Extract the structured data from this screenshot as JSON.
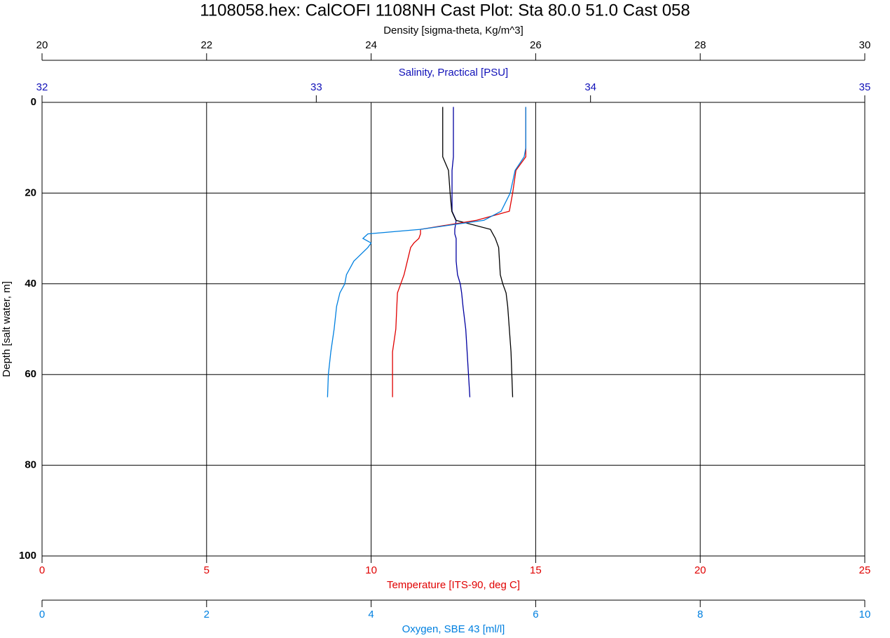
{
  "chart_data": {
    "type": "line",
    "title": "1108058.hex: CalCOFI 1108NH Cast Plot: Sta 80.0 51.0 Cast 058",
    "ylabel": "Depth [salt water, m]",
    "ylim": [
      0,
      100
    ],
    "yticks": [
      0,
      20,
      40,
      60,
      80,
      100
    ],
    "y_reversed": true,
    "grid": true,
    "y": [
      1,
      5,
      10,
      12,
      15,
      20,
      24,
      26,
      28,
      29,
      30,
      31,
      32,
      35,
      38,
      40,
      42,
      45,
      50,
      55,
      60,
      65
    ],
    "x_axes": [
      {
        "label": "Density [sigma-theta, Kg/m^3]",
        "color": "#000000",
        "side": "top",
        "xlim": [
          20,
          30
        ],
        "xticks": [
          20,
          22,
          24,
          26,
          28,
          30
        ]
      },
      {
        "label": "Salinity, Practical [PSU]",
        "color": "#1010b8",
        "side": "top",
        "xlim": [
          32,
          35
        ],
        "xticks": [
          32,
          33,
          34,
          35
        ]
      },
      {
        "label": "Temperature [ITS-90, deg C]",
        "color": "#e00000",
        "side": "bottom",
        "xlim": [
          0,
          25
        ],
        "xticks": [
          0,
          5,
          10,
          15,
          20,
          25
        ],
        "grid": true
      },
      {
        "label": "Oxygen, SBE 43 [ml/l]",
        "color": "#0080e0",
        "side": "bottom",
        "xlim": [
          0,
          10
        ],
        "xticks": [
          0,
          2,
          4,
          6,
          8,
          10
        ]
      }
    ],
    "series": [
      {
        "axis": 1,
        "color": "#0000a0",
        "values": [
          33.5,
          33.5,
          33.5,
          33.5,
          33.495,
          33.495,
          33.495,
          33.51,
          33.505,
          33.505,
          33.51,
          33.51,
          33.51,
          33.51,
          33.515,
          33.525,
          33.53,
          33.535,
          33.545,
          33.55,
          33.555,
          33.56
        ]
      },
      {
        "axis": 0,
        "color": "#000000",
        "values": [
          24.87,
          24.87,
          24.87,
          24.87,
          24.94,
          24.96,
          24.98,
          25.03,
          25.45,
          25.48,
          25.51,
          25.53,
          25.55,
          25.56,
          25.57,
          25.6,
          25.64,
          25.66,
          25.68,
          25.7,
          25.71,
          25.72
        ]
      },
      {
        "axis": 2,
        "color": "#e00000",
        "values": [
          14.7,
          14.7,
          14.7,
          14.7,
          14.4,
          14.3,
          14.2,
          13.2,
          11.5,
          11.5,
          11.45,
          11.3,
          11.2,
          11.1,
          11.0,
          10.9,
          10.8,
          10.78,
          10.75,
          10.65,
          10.65,
          10.65
        ]
      },
      {
        "axis": 3,
        "color": "#0080e0",
        "values": [
          5.88,
          5.88,
          5.88,
          5.86,
          5.75,
          5.69,
          5.58,
          5.37,
          4.6,
          3.96,
          3.9,
          4.0,
          3.96,
          3.79,
          3.7,
          3.68,
          3.62,
          3.58,
          3.55,
          3.51,
          3.48,
          3.47
        ]
      }
    ]
  }
}
